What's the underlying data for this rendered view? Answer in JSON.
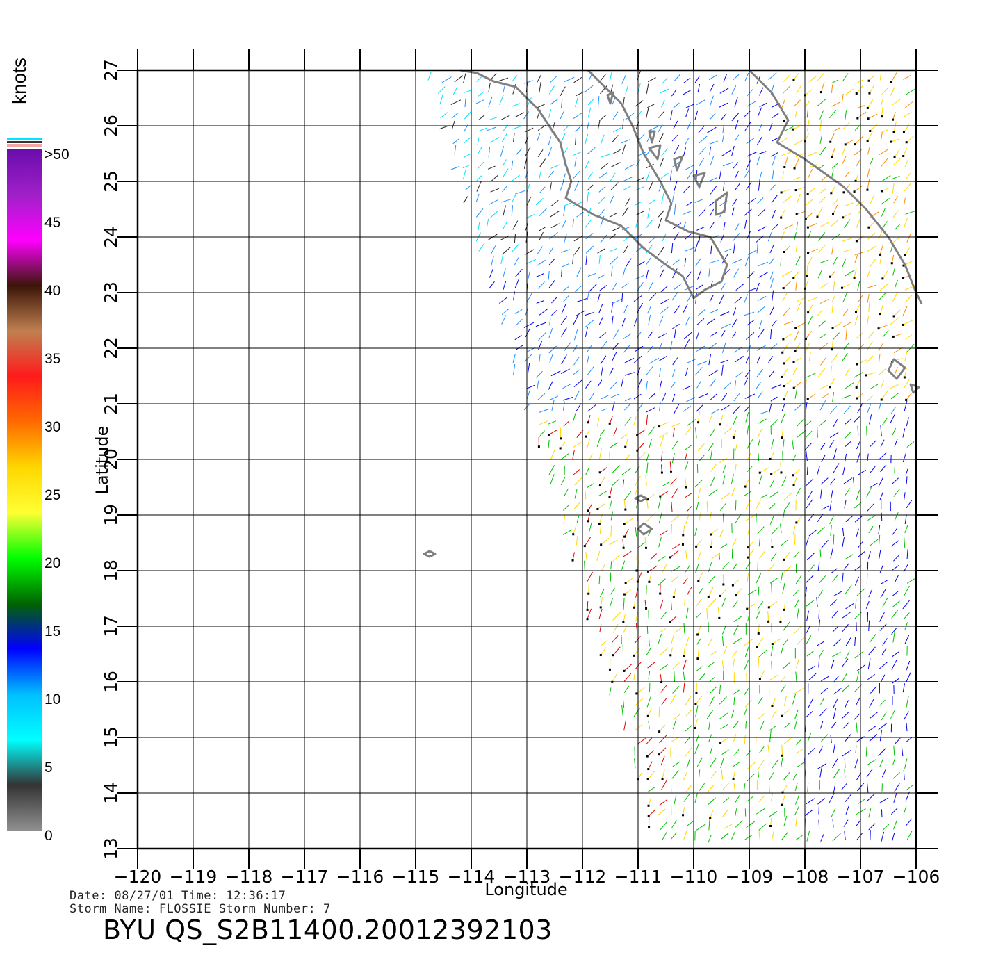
{
  "map": {
    "lon_range": [
      -120,
      -106
    ],
    "lat_range": [
      13,
      27
    ],
    "lon_ticks": [
      "−120",
      "−119",
      "−118",
      "−117",
      "−116",
      "−115",
      "−114",
      "−113",
      "−112",
      "−111",
      "−110",
      "−109",
      "−108",
      "−107",
      "−106"
    ],
    "lat_ticks": [
      "13",
      "14",
      "15",
      "16",
      "17",
      "18",
      "19",
      "20",
      "21",
      "22",
      "23",
      "24",
      "25",
      "26",
      "27"
    ],
    "xlabel": "Longitude",
    "ylabel": "Latitude",
    "grid": true,
    "land_color": "#808080"
  },
  "colorbar": {
    "title": "knots",
    "labels": [
      ">50",
      "45",
      "40",
      "35",
      "30",
      "25",
      "20",
      "15",
      "10",
      "5",
      "0"
    ],
    "colors": [
      "#6a0dad",
      "#a020c8",
      "#ff00ff",
      "#3a1508",
      "#c08050",
      "#ff1a1a",
      "#ff6a00",
      "#ffd700",
      "#ffff33",
      "#00ff00",
      "#006400",
      "#0000ff",
      "#00bfff",
      "#00ffff",
      "#333333",
      "#909090"
    ]
  },
  "info": {
    "line1": "Date: 08/27/01   Time: 12:36:17",
    "line2": "Storm Name: FLOSSIE   Storm Number: 7"
  },
  "title": "BYU QS_S2B11400.20012392103"
}
